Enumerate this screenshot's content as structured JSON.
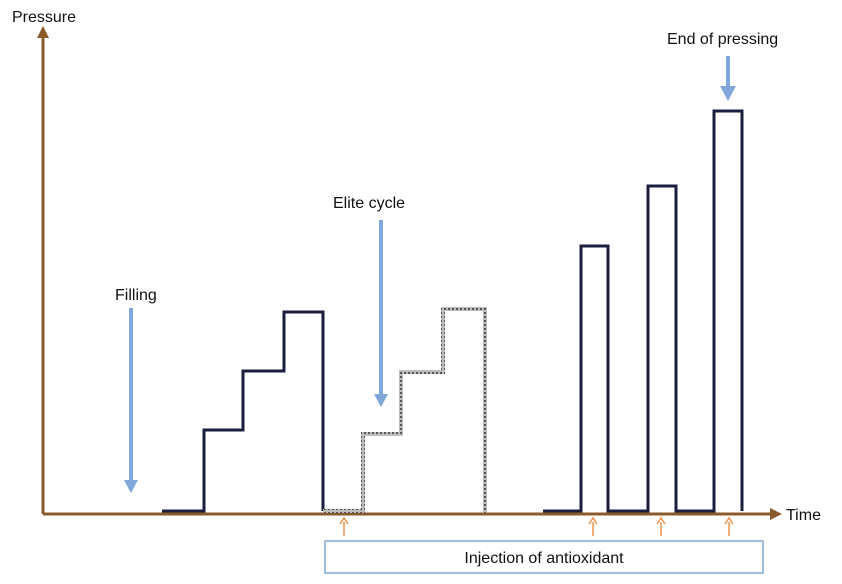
{
  "labels": {
    "y_axis": "Pressure",
    "x_axis": "Time",
    "filling": "Filling",
    "elite_cycle": "Elite cycle",
    "end_of_pressing": "End of pressing",
    "injection": "Injection of antioxidant"
  },
  "colors": {
    "axis": "#8B5A2B",
    "curve": "#1B1E3D",
    "elite_curve": "#6E6E6E",
    "callout_arrow": "#7FA7DA",
    "injection_arrow": "#F0924A",
    "injection_box_border": "#7FA7DA"
  },
  "icons": {
    "callout_arrow": "down-arrow-icon",
    "injection_arrow": "up-arrow-icon"
  }
}
